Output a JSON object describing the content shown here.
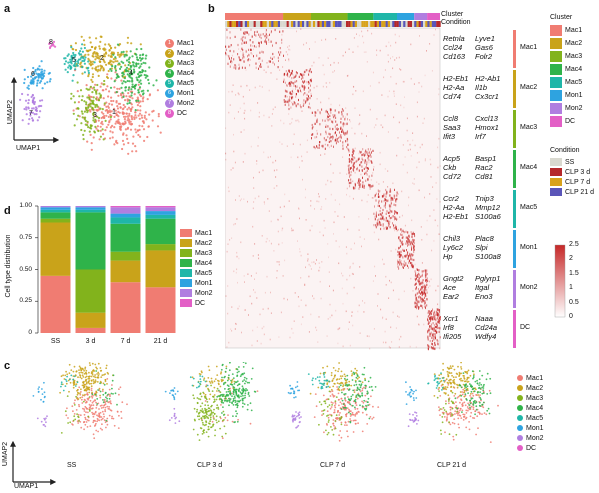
{
  "panel_letters": {
    "a": "a",
    "b": "b",
    "c": "c",
    "d": "d"
  },
  "panel_a": {
    "axis_x": "UMAP1",
    "axis_y": "UMAP2",
    "cluster_numbers": [
      "1",
      "2",
      "3",
      "4",
      "5",
      "6",
      "7",
      "8"
    ],
    "legend": [
      {
        "num": "1",
        "label": "Mac1",
        "color": "#f07c72"
      },
      {
        "num": "2",
        "label": "Mac2",
        "color": "#c9a31a"
      },
      {
        "num": "3",
        "label": "Mac3",
        "color": "#82b31c"
      },
      {
        "num": "4",
        "label": "Mac4",
        "color": "#2fb34a"
      },
      {
        "num": "5",
        "label": "Mac5",
        "color": "#1fb6a8"
      },
      {
        "num": "6",
        "label": "Mon1",
        "color": "#2ea3e0"
      },
      {
        "num": "7",
        "label": "Mon2",
        "color": "#b07ee0"
      },
      {
        "num": "8",
        "label": "DC",
        "color": "#e35fc6"
      }
    ]
  },
  "panel_b": {
    "row_labels": {
      "cluster": "Cluster",
      "condition": "Condition"
    },
    "gene_groups": [
      {
        "cluster": "Mac1",
        "left": [
          "Retnla",
          "Ccl24",
          "Cd163"
        ],
        "right": [
          "Lyve1",
          "Gas6",
          "Folr2"
        ]
      },
      {
        "cluster": "Mac2",
        "left": [
          "H2-Eb1",
          "H2-Aa",
          "Cd74"
        ],
        "right": [
          "H2-Ab1",
          "Il1b",
          "Cx3cr1"
        ]
      },
      {
        "cluster": "Mac3",
        "left": [
          "Ccl8",
          "Saa3",
          "Ifit3"
        ],
        "right": [
          "Cxcl13",
          "Hmox1",
          "Irf7"
        ]
      },
      {
        "cluster": "Mac4",
        "left": [
          "Acp5",
          "Ckb",
          "Cd72"
        ],
        "right": [
          "Basp1",
          "Rac2",
          "Cd81"
        ]
      },
      {
        "cluster": "Mac5",
        "left": [
          "Ccr2",
          "H2-Aa",
          "H2-Eb1"
        ],
        "right": [
          "Tnip3",
          "Mmp12",
          "S100a6"
        ]
      },
      {
        "cluster": "Mon1",
        "left": [
          "Chil3",
          "Ly6c2",
          "Hp"
        ],
        "right": [
          "Plac8",
          "Slpi",
          "S100a8"
        ]
      },
      {
        "cluster": "Mon2",
        "left": [
          "Gngt2",
          "Ace",
          "Ear2"
        ],
        "right": [
          "Pglyrp1",
          "Itgal",
          "Eno3"
        ]
      },
      {
        "cluster": "DC",
        "left": [
          "Xcr1",
          "Irf8",
          "Ifi205"
        ],
        "right": [
          "Naaa",
          "Cd24a",
          "Wdfy4"
        ]
      }
    ],
    "cluster_legend_title": "Cluster",
    "condition_legend_title": "Condition",
    "condition_legend": [
      {
        "label": "SS",
        "color": "#d9d9d0"
      },
      {
        "label": "CLP 3 d",
        "color": "#b5282b"
      },
      {
        "label": "CLP 7 d",
        "color": "#d8a21c"
      },
      {
        "label": "CLP 21 d",
        "color": "#5a55b8"
      }
    ],
    "colorbar": {
      "ticks": [
        "2.5",
        "2",
        "1.5",
        "1",
        "0.5",
        "0"
      ],
      "max_color": "#c62828",
      "min_color": "#ffffff"
    }
  },
  "panel_c": {
    "axis_x": "UMAP1",
    "axis_y": "UMAP2",
    "conditions": [
      "SS",
      "CLP 3 d",
      "CLP 7 d",
      "CLP 21 d"
    ]
  },
  "chart_data": {
    "type": "bar",
    "stacked": true,
    "ylabel": "Cell type distribution",
    "ylim": [
      0,
      1
    ],
    "yticks": [
      "0",
      "0.25",
      "0.50",
      "0.75",
      "1.00"
    ],
    "categories": [
      "SS",
      "3 d",
      "7 d",
      "21 d"
    ],
    "legend_position": "right",
    "series": [
      {
        "name": "Mac1",
        "color": "#f07c72",
        "values": [
          0.45,
          0.04,
          0.4,
          0.36
        ]
      },
      {
        "name": "Mac2",
        "color": "#c9a31a",
        "values": [
          0.42,
          0.12,
          0.17,
          0.29
        ]
      },
      {
        "name": "Mac3",
        "color": "#82b31c",
        "values": [
          0.03,
          0.34,
          0.07,
          0.05
        ]
      },
      {
        "name": "Mac4",
        "color": "#2fb34a",
        "values": [
          0.05,
          0.45,
          0.22,
          0.2
        ]
      },
      {
        "name": "Mac5",
        "color": "#1fb6a8",
        "values": [
          0.02,
          0.02,
          0.05,
          0.03
        ]
      },
      {
        "name": "Mon1",
        "color": "#2ea3e0",
        "values": [
          0.02,
          0.02,
          0.03,
          0.03
        ]
      },
      {
        "name": "Mon2",
        "color": "#b07ee0",
        "values": [
          0.01,
          0.01,
          0.05,
          0.03
        ]
      },
      {
        "name": "DC",
        "color": "#e35fc6",
        "values": [
          0.0,
          0.0,
          0.01,
          0.01
        ]
      }
    ]
  }
}
